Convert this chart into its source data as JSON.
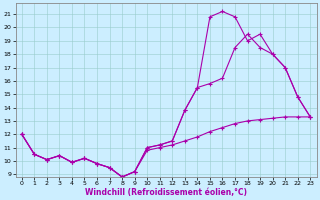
{
  "xlabel": "Windchill (Refroidissement éolien,°C)",
  "xlim": [
    -0.5,
    23.5
  ],
  "ylim": [
    8.8,
    21.8
  ],
  "yticks": [
    9,
    10,
    11,
    12,
    13,
    14,
    15,
    16,
    17,
    18,
    19,
    20,
    21
  ],
  "xticks": [
    0,
    1,
    2,
    3,
    4,
    5,
    6,
    7,
    8,
    9,
    10,
    11,
    12,
    13,
    14,
    15,
    16,
    17,
    18,
    19,
    20,
    21,
    22,
    23
  ],
  "line_color": "#aa00aa",
  "bg_color": "#cceeff",
  "line1_x": [
    0,
    1,
    2,
    3,
    4,
    5,
    6,
    7,
    8,
    9,
    10,
    11,
    12,
    13,
    14,
    15,
    16,
    17,
    18,
    19,
    20,
    21,
    22,
    23
  ],
  "line1_y": [
    12.0,
    10.5,
    10.1,
    10.4,
    9.9,
    10.2,
    9.8,
    9.5,
    8.8,
    9.2,
    10.8,
    11.0,
    11.2,
    11.5,
    11.8,
    12.2,
    12.5,
    12.8,
    13.0,
    13.1,
    13.2,
    13.3,
    13.3,
    13.3
  ],
  "line2_x": [
    0,
    1,
    2,
    3,
    4,
    5,
    6,
    7,
    8,
    9,
    10,
    11,
    12,
    13,
    14,
    15,
    16,
    17,
    18,
    19,
    20,
    21,
    22,
    23
  ],
  "line2_y": [
    12.0,
    10.5,
    10.1,
    10.4,
    9.9,
    10.2,
    9.8,
    9.5,
    8.8,
    9.2,
    11.0,
    11.2,
    11.5,
    13.8,
    15.5,
    15.8,
    16.2,
    18.5,
    19.5,
    18.5,
    18.0,
    17.0,
    14.8,
    13.3
  ],
  "line3_x": [
    0,
    1,
    2,
    3,
    4,
    5,
    6,
    7,
    8,
    9,
    10,
    11,
    12,
    13,
    14,
    15,
    16,
    17,
    18,
    19,
    20,
    21,
    22,
    23
  ],
  "line3_y": [
    12.0,
    10.5,
    10.1,
    10.4,
    9.9,
    10.2,
    9.8,
    9.5,
    8.8,
    9.2,
    11.0,
    11.2,
    11.5,
    13.8,
    15.5,
    20.8,
    21.2,
    20.8,
    19.0,
    19.5,
    18.0,
    17.0,
    14.8,
    13.3
  ]
}
